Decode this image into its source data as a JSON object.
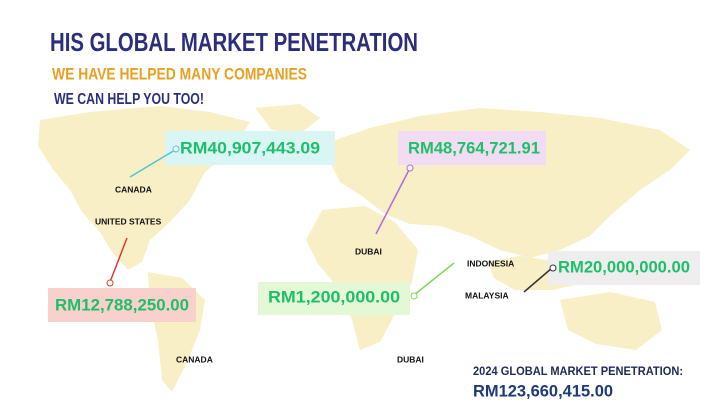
{
  "header": {
    "title": "HIS GLOBAL MARKET PENETRATION",
    "subtitle": "WE HAVE HELPED MANY COMPANIES",
    "tagline": "WE CAN HELP YOU TOO!"
  },
  "callouts": [
    {
      "amount": "RM40,907,443.09"
    },
    {
      "amount": "RM48,764,721.91"
    },
    {
      "amount": "RM12,788,250.00"
    },
    {
      "amount": "RM1,200,000.00"
    },
    {
      "amount": "RM20,000,000.00"
    }
  ],
  "places": [
    "CANADA",
    "UNITED STATES",
    "DUBAI",
    "INDONESIA",
    "MALAYSIA",
    "CANADA",
    "DUBAI"
  ],
  "summary": {
    "label": "2024 GLOBAL MARKET PENETRATION:",
    "total": "RM123,660,415.00"
  }
}
